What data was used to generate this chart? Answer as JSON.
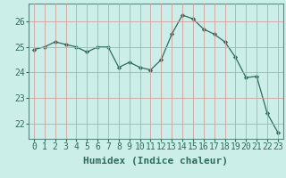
{
  "x": [
    0,
    1,
    2,
    3,
    4,
    5,
    6,
    7,
    8,
    9,
    10,
    11,
    12,
    13,
    14,
    15,
    16,
    17,
    18,
    19,
    20,
    21,
    22,
    23
  ],
  "y": [
    24.9,
    25.0,
    25.2,
    25.1,
    25.0,
    24.8,
    25.0,
    25.0,
    24.2,
    24.4,
    24.2,
    24.1,
    24.5,
    25.5,
    26.25,
    26.1,
    25.7,
    25.5,
    25.2,
    24.6,
    23.8,
    23.85,
    22.4,
    21.65
  ],
  "line_color": "#2e6b5e",
  "marker": "D",
  "marker_size": 2.2,
  "bg_color": "#cceee8",
  "plot_bg_color": "#cceee8",
  "grid_color": "#d4a0a0",
  "grid_alpha": 1.0,
  "xlabel": "Humidex (Indice chaleur)",
  "xlabel_fontsize": 8,
  "tick_fontsize": 7,
  "xlim": [
    -0.5,
    23.5
  ],
  "ylim": [
    21.4,
    26.7
  ],
  "yticks": [
    22,
    23,
    24,
    25,
    26
  ],
  "xticks": [
    0,
    1,
    2,
    3,
    4,
    5,
    6,
    7,
    8,
    9,
    10,
    11,
    12,
    13,
    14,
    15,
    16,
    17,
    18,
    19,
    20,
    21,
    22,
    23
  ],
  "spine_color": "#5a8a80",
  "tick_color": "#2e6b5e"
}
